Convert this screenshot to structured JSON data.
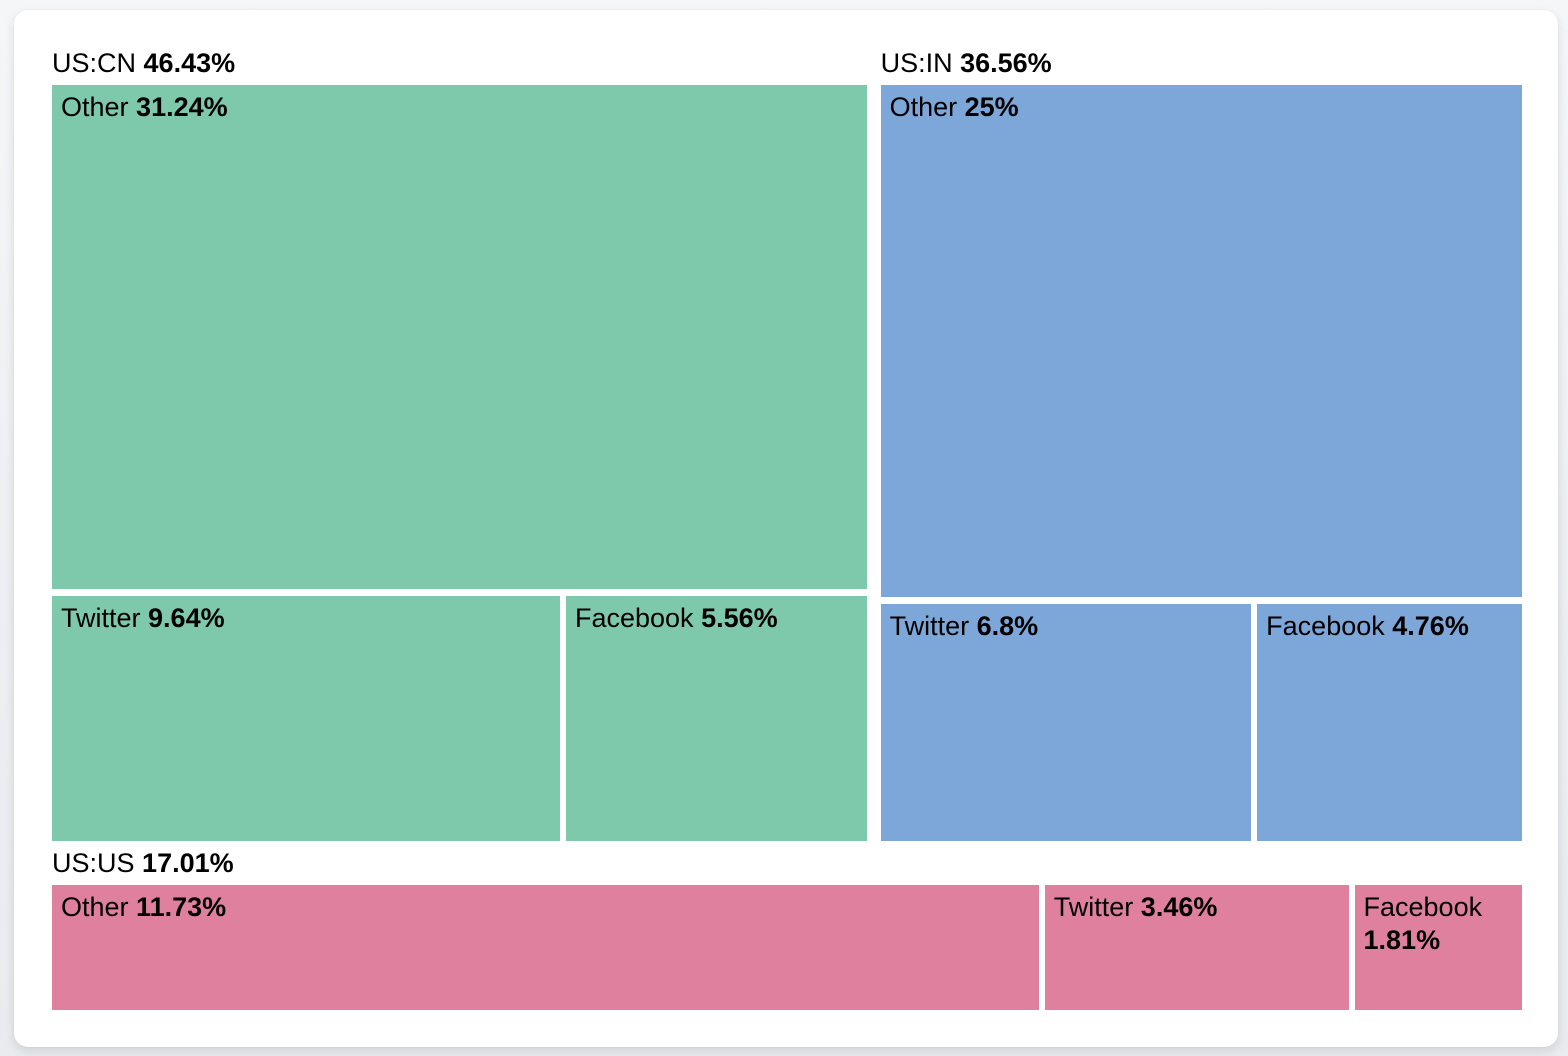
{
  "chart_data": {
    "type": "treemap",
    "title": "",
    "legend": "none",
    "layout_hint": "top row: US:CN (left) and US:IN (right); US:US spans full-width bottom strip; within US:CN and US:IN the 'Other' cell spans full width above a Twitter+Facebook row; US:US has all three cells in one row",
    "text_color": "#000000",
    "groups": [
      {
        "label": "US:CN",
        "value": 46.43,
        "value_label": "46.43%",
        "color": "#7EC8AB",
        "children": [
          {
            "name": "Other",
            "value": 31.24,
            "value_label": "31.24%"
          },
          {
            "name": "Twitter",
            "value": 9.64,
            "value_label": "9.64%"
          },
          {
            "name": "Facebook",
            "value": 5.56,
            "value_label": "5.56%"
          }
        ]
      },
      {
        "label": "US:IN",
        "value": 36.56,
        "value_label": "36.56%",
        "color": "#7DA7D8",
        "children": [
          {
            "name": "Other",
            "value": 25,
            "value_label": "25%"
          },
          {
            "name": "Twitter",
            "value": 6.8,
            "value_label": "6.8%"
          },
          {
            "name": "Facebook",
            "value": 4.76,
            "value_label": "4.76%"
          }
        ]
      },
      {
        "label": "US:US",
        "value": 17.01,
        "value_label": "17.01%",
        "color": "#E0809F",
        "children": [
          {
            "name": "Other",
            "value": 11.73,
            "value_label": "11.73%"
          },
          {
            "name": "Twitter",
            "value": 3.46,
            "value_label": "3.46%"
          },
          {
            "name": "Facebook",
            "value": 1.81,
            "value_label": "1.81%"
          }
        ]
      }
    ]
  }
}
